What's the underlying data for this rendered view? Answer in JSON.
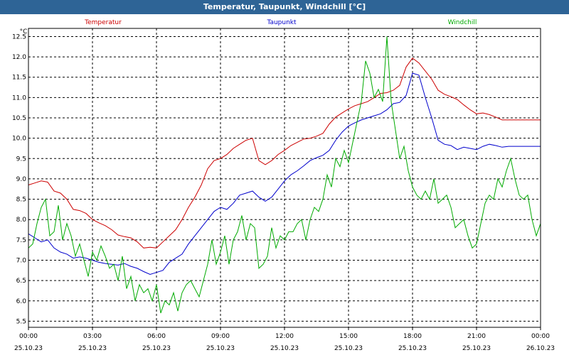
{
  "window": {
    "title": "Temperatur, Taupunkt, Windchill [°C]"
  },
  "chart_data": {
    "type": "line",
    "title": "Temperatur, Taupunkt, Windchill [°C]",
    "ylabel": "°C",
    "xlabel": "",
    "ylim": [
      5.35,
      12.7
    ],
    "xlim": [
      0,
      24
    ],
    "grid": true,
    "y_ticks": [
      "5.5",
      "6.0",
      "6.5",
      "7.0",
      "7.5",
      "8.0",
      "8.5",
      "9.0",
      "9.5",
      "10.0",
      "10.5",
      "11.0",
      "11.5",
      "12.0",
      "12.5"
    ],
    "x_ticks": [
      {
        "time": "00:00",
        "date": "25.10.23"
      },
      {
        "time": "03:00",
        "date": "25.10.23"
      },
      {
        "time": "06:00",
        "date": "25.10.23"
      },
      {
        "time": "09:00",
        "date": "25.10.23"
      },
      {
        "time": "12:00",
        "date": "25.10.23"
      },
      {
        "time": "15:00",
        "date": "25.10.23"
      },
      {
        "time": "18:00",
        "date": "25.10.23"
      },
      {
        "time": "21:00",
        "date": "25.10.23"
      },
      {
        "time": "00:00",
        "date": "26.10.23"
      }
    ],
    "series": [
      {
        "name": "Temperatur",
        "color": "#cc0000",
        "x": [
          0,
          0.3,
          0.6,
          0.9,
          1.2,
          1.5,
          1.8,
          2.1,
          2.4,
          2.7,
          3.0,
          3.3,
          3.6,
          3.9,
          4.2,
          4.5,
          4.8,
          5.1,
          5.4,
          5.7,
          6.0,
          6.3,
          6.6,
          6.9,
          7.2,
          7.5,
          7.8,
          8.1,
          8.4,
          8.7,
          9.0,
          9.3,
          9.6,
          9.9,
          10.2,
          10.5,
          10.8,
          11.1,
          11.4,
          11.7,
          12.0,
          12.3,
          12.6,
          12.9,
          13.2,
          13.5,
          13.8,
          14.1,
          14.4,
          14.7,
          15.0,
          15.3,
          15.6,
          15.9,
          16.2,
          16.5,
          16.8,
          17.1,
          17.4,
          17.7,
          18.0,
          18.3,
          18.6,
          18.9,
          19.2,
          19.5,
          19.8,
          20.1,
          20.4,
          20.7,
          21.0,
          21.3,
          21.6,
          21.9,
          22.2,
          22.5,
          22.8,
          23.1,
          23.4,
          23.7,
          24.0
        ],
        "values": [
          8.85,
          8.9,
          8.95,
          8.92,
          8.7,
          8.65,
          8.5,
          8.25,
          8.22,
          8.15,
          8.0,
          7.92,
          7.85,
          7.75,
          7.62,
          7.58,
          7.55,
          7.45,
          7.3,
          7.32,
          7.3,
          7.45,
          7.6,
          7.75,
          8.0,
          8.3,
          8.55,
          8.85,
          9.25,
          9.45,
          9.5,
          9.6,
          9.75,
          9.85,
          9.95,
          10.0,
          9.45,
          9.35,
          9.45,
          9.6,
          9.7,
          9.82,
          9.9,
          9.98,
          10.0,
          10.05,
          10.12,
          10.35,
          10.52,
          10.62,
          10.72,
          10.8,
          10.85,
          10.9,
          11.0,
          11.1,
          11.12,
          11.18,
          11.3,
          11.75,
          11.97,
          11.85,
          11.65,
          11.45,
          11.18,
          11.08,
          11.02,
          10.95,
          10.82,
          10.7,
          10.6,
          10.62,
          10.58,
          10.52,
          10.45,
          10.45,
          10.45,
          10.45,
          10.45,
          10.45,
          10.45
        ]
      },
      {
        "name": "Taupunkt",
        "color": "#0000cc",
        "x": [
          0,
          0.3,
          0.6,
          0.9,
          1.2,
          1.5,
          1.8,
          2.1,
          2.4,
          2.7,
          3.0,
          3.3,
          3.6,
          3.9,
          4.2,
          4.5,
          4.8,
          5.1,
          5.4,
          5.7,
          6.0,
          6.3,
          6.6,
          6.9,
          7.2,
          7.5,
          7.8,
          8.1,
          8.4,
          8.7,
          9.0,
          9.3,
          9.6,
          9.9,
          10.2,
          10.5,
          10.8,
          11.1,
          11.4,
          11.7,
          12.0,
          12.3,
          12.6,
          12.9,
          13.2,
          13.5,
          13.8,
          14.1,
          14.4,
          14.7,
          15.0,
          15.3,
          15.6,
          15.9,
          16.2,
          16.5,
          16.8,
          17.1,
          17.4,
          17.7,
          18.0,
          18.3,
          18.6,
          18.9,
          19.2,
          19.5,
          19.8,
          20.1,
          20.4,
          20.7,
          21.0,
          21.3,
          21.6,
          21.9,
          22.2,
          22.5,
          22.8,
          23.1,
          23.4,
          23.7,
          24.0
        ],
        "values": [
          7.65,
          7.55,
          7.45,
          7.5,
          7.3,
          7.2,
          7.15,
          7.05,
          7.08,
          7.05,
          7.0,
          6.95,
          6.92,
          6.9,
          6.88,
          6.92,
          6.85,
          6.8,
          6.72,
          6.65,
          6.7,
          6.75,
          6.95,
          7.05,
          7.15,
          7.4,
          7.6,
          7.8,
          8.0,
          8.2,
          8.3,
          8.25,
          8.4,
          8.6,
          8.65,
          8.7,
          8.55,
          8.45,
          8.55,
          8.75,
          8.95,
          9.1,
          9.2,
          9.32,
          9.45,
          9.52,
          9.58,
          9.7,
          9.95,
          10.15,
          10.3,
          10.38,
          10.45,
          10.5,
          10.55,
          10.6,
          10.7,
          10.85,
          10.88,
          11.05,
          11.6,
          11.55,
          11.0,
          10.5,
          9.95,
          9.85,
          9.82,
          9.72,
          9.78,
          9.75,
          9.72,
          9.8,
          9.85,
          9.82,
          9.78,
          9.8,
          9.8,
          9.8,
          9.8,
          9.8,
          9.8
        ]
      },
      {
        "name": "Windchill",
        "color": "#00aa00",
        "x": [
          0,
          0.2,
          0.4,
          0.6,
          0.8,
          1.0,
          1.2,
          1.4,
          1.6,
          1.8,
          2.0,
          2.2,
          2.4,
          2.6,
          2.8,
          3.0,
          3.2,
          3.4,
          3.6,
          3.8,
          4.0,
          4.2,
          4.4,
          4.6,
          4.8,
          5.0,
          5.2,
          5.4,
          5.6,
          5.8,
          6.0,
          6.2,
          6.4,
          6.6,
          6.8,
          7.0,
          7.2,
          7.4,
          7.6,
          7.8,
          8.0,
          8.2,
          8.4,
          8.6,
          8.8,
          9.0,
          9.2,
          9.4,
          9.6,
          9.8,
          10.0,
          10.2,
          10.4,
          10.6,
          10.8,
          11.0,
          11.2,
          11.4,
          11.6,
          11.8,
          12.0,
          12.2,
          12.4,
          12.6,
          12.8,
          13.0,
          13.2,
          13.4,
          13.6,
          13.8,
          14.0,
          14.2,
          14.4,
          14.6,
          14.8,
          15.0,
          15.2,
          15.4,
          15.6,
          15.8,
          16.0,
          16.2,
          16.4,
          16.6,
          16.8,
          17.0,
          17.2,
          17.4,
          17.6,
          17.8,
          18.0,
          18.2,
          18.4,
          18.6,
          18.8,
          19.0,
          19.2,
          19.4,
          19.6,
          19.8,
          20.0,
          20.2,
          20.4,
          20.6,
          20.8,
          21.0,
          21.2,
          21.4,
          21.6,
          21.8,
          22.0,
          22.2,
          22.4,
          22.6,
          22.8,
          23.0,
          23.2,
          23.4,
          23.6,
          23.8,
          24.0
        ],
        "values": [
          7.3,
          7.4,
          7.9,
          8.3,
          8.5,
          7.6,
          7.7,
          8.35,
          7.5,
          7.9,
          7.6,
          7.1,
          7.4,
          7.0,
          6.6,
          7.2,
          7.0,
          7.35,
          7.1,
          6.8,
          6.9,
          6.5,
          7.1,
          6.3,
          6.6,
          6.0,
          6.4,
          6.2,
          6.3,
          6.0,
          6.4,
          5.7,
          6.0,
          5.9,
          6.2,
          5.75,
          6.2,
          6.4,
          6.5,
          6.3,
          6.1,
          6.5,
          6.9,
          7.5,
          6.9,
          7.2,
          7.6,
          6.9,
          7.5,
          7.7,
          8.1,
          7.5,
          7.9,
          7.8,
          6.8,
          6.9,
          7.1,
          7.8,
          7.3,
          7.6,
          7.5,
          7.7,
          7.7,
          7.9,
          8.0,
          7.5,
          8.0,
          8.3,
          8.2,
          8.5,
          9.1,
          8.8,
          9.5,
          9.3,
          9.7,
          9.4,
          9.9,
          10.4,
          10.9,
          11.9,
          11.6,
          11.0,
          11.2,
          10.9,
          12.5,
          10.9,
          10.2,
          9.5,
          9.8,
          9.2,
          8.8,
          8.6,
          8.5,
          8.7,
          8.5,
          9.0,
          8.4,
          8.5,
          8.6,
          8.3,
          7.8,
          7.9,
          8.0,
          7.6,
          7.3,
          7.4,
          7.9,
          8.4,
          8.6,
          8.5,
          9.0,
          8.8,
          9.2,
          9.5,
          9.0,
          8.6,
          8.5,
          8.6,
          8.0,
          7.6,
          7.9
        ]
      }
    ]
  }
}
